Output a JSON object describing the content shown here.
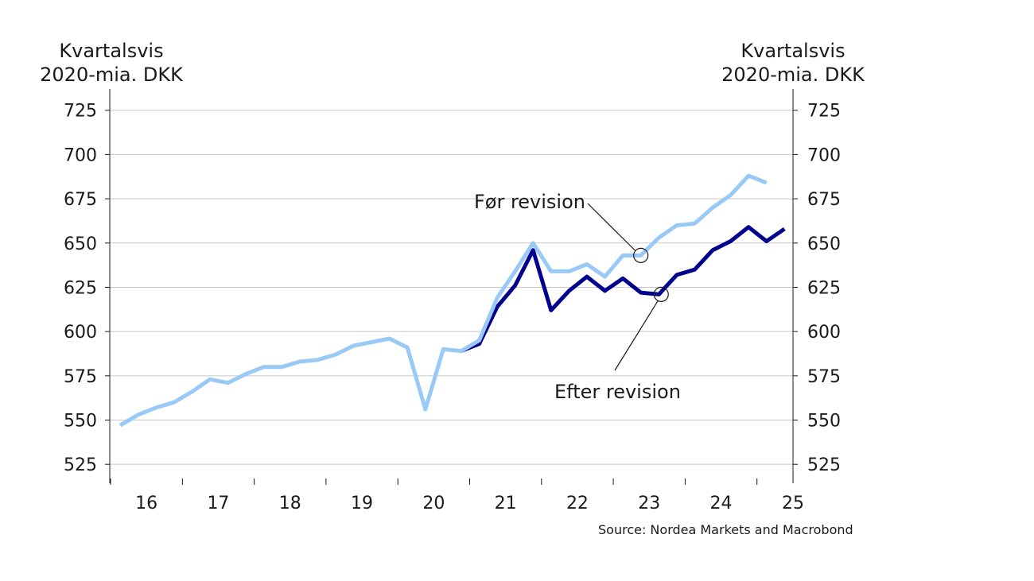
{
  "chart_data": {
    "type": "line",
    "title": "",
    "left_axis_label": [
      "Kvartalsvis",
      "2020-mia. DKK"
    ],
    "right_axis_label": [
      "Kvartalsvis",
      "2020-mia. DKK"
    ],
    "ylim": [
      517,
      737
    ],
    "y_ticks": [
      525,
      550,
      575,
      600,
      625,
      650,
      675,
      700,
      725
    ],
    "x_ticks": [
      "16",
      "17",
      "18",
      "19",
      "20",
      "21",
      "22",
      "23",
      "24",
      "25"
    ],
    "grid": true,
    "x_start": "2016-Q1",
    "series": [
      {
        "name": "Før revision",
        "color": "#99c9f7",
        "values": [
          547,
          553,
          557,
          560,
          566,
          573,
          571,
          576,
          580,
          580,
          583,
          584,
          587,
          592,
          594,
          596,
          591,
          556,
          590,
          589,
          595,
          619,
          634,
          650,
          634,
          634,
          638,
          631,
          643,
          643,
          653,
          660,
          661,
          670,
          677,
          688,
          684
        ]
      },
      {
        "name": "Efter revision",
        "color": "#00008f",
        "values": [
          null,
          null,
          null,
          null,
          null,
          null,
          null,
          null,
          null,
          null,
          null,
          null,
          null,
          null,
          null,
          null,
          null,
          null,
          null,
          589,
          593,
          614,
          626,
          646,
          612,
          623,
          631,
          623,
          630,
          622,
          621,
          632,
          635,
          646,
          651,
          659,
          651,
          658
        ]
      }
    ],
    "annotations": [
      {
        "text": "Før revision",
        "series": "Før revision",
        "index": 29
      },
      {
        "text": "Efter revision",
        "series": "Efter revision",
        "index": 30
      }
    ],
    "source": "Source: Nordea Markets and Macrobond"
  }
}
